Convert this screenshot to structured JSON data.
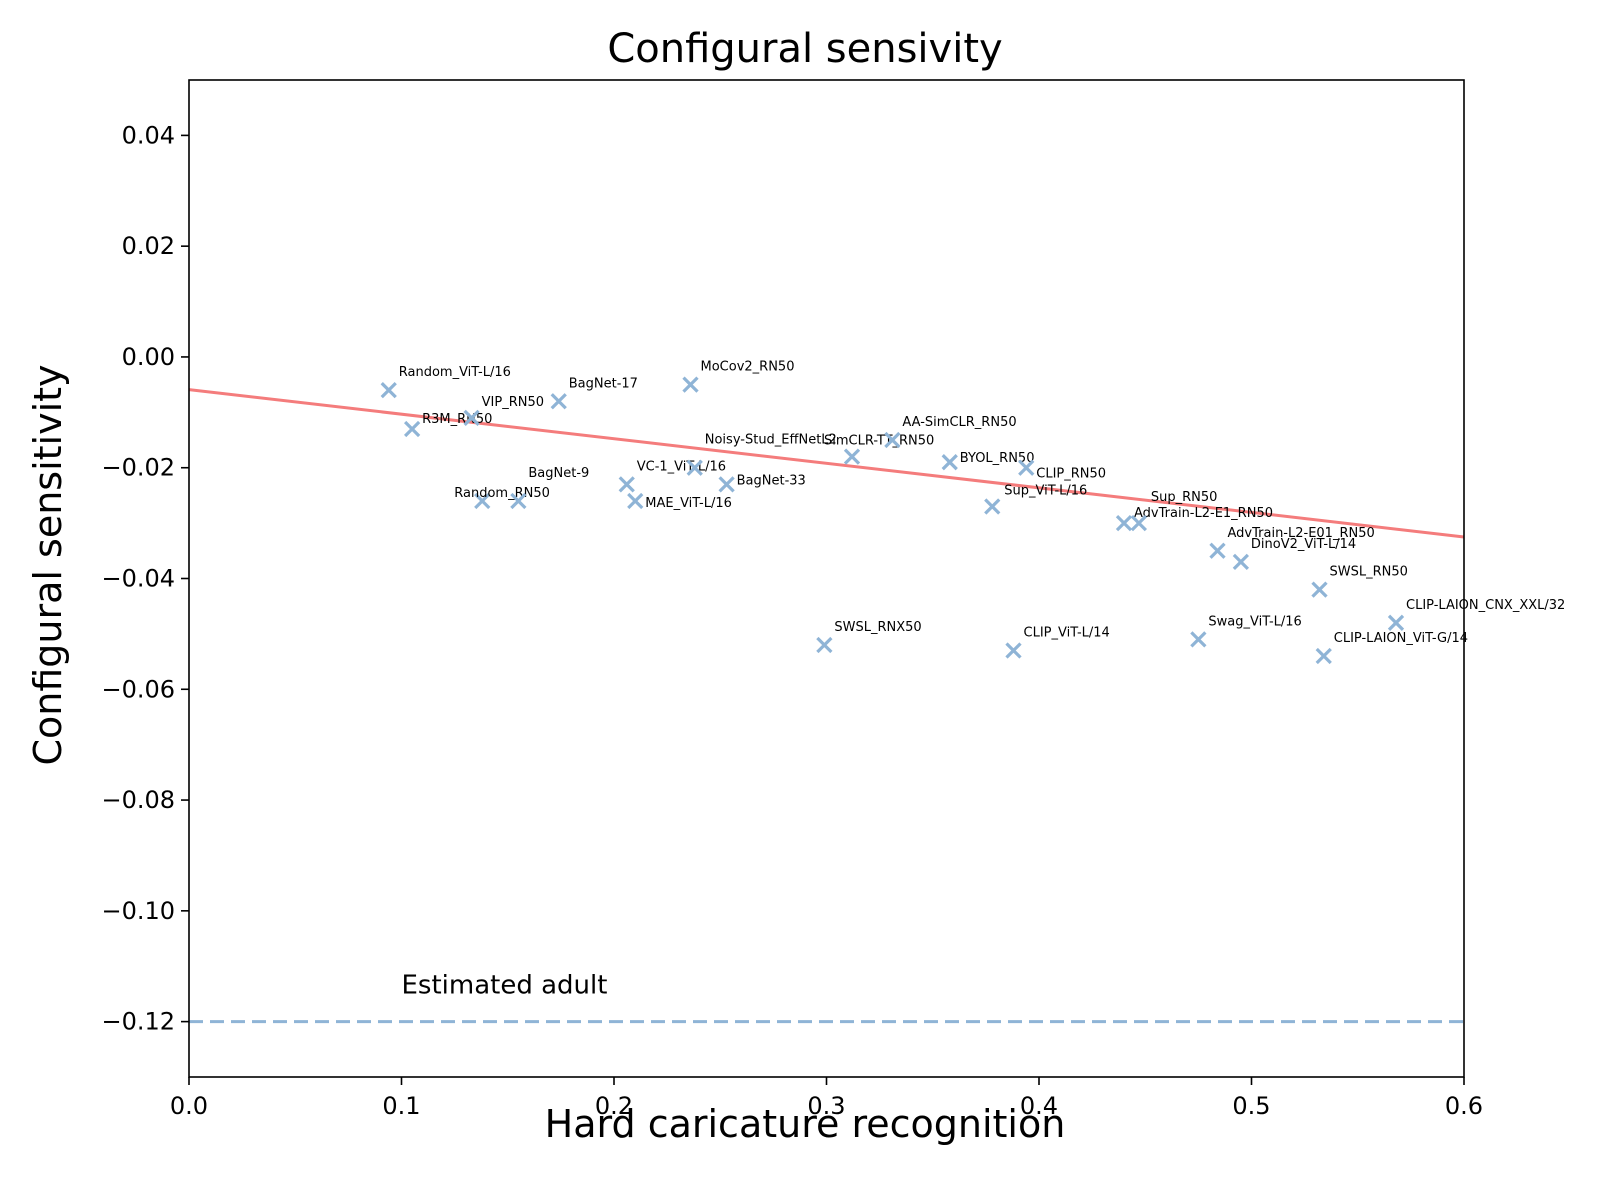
{
  "chart_data": {
    "type": "scatter",
    "title": "Configural sensivity",
    "xlabel": "Hard caricature recognition",
    "ylabel": "Configural sensitivity",
    "xlim": [
      0.0,
      0.6
    ],
    "ylim": [
      -0.13,
      0.05
    ],
    "xticks": [
      0.0,
      0.1,
      0.2,
      0.3,
      0.4,
      0.5,
      0.6
    ],
    "xtick_labels": [
      "0.0",
      "0.1",
      "0.2",
      "0.3",
      "0.4",
      "0.5",
      "0.6"
    ],
    "yticks": [
      0.04,
      0.02,
      0.0,
      -0.02,
      -0.04,
      -0.06,
      -0.08,
      -0.1,
      -0.12
    ],
    "ytick_labels": [
      "0.04",
      "0.02",
      "0.00",
      "−0.02",
      "−0.04",
      "−0.06",
      "−0.08",
      "−0.10",
      "−0.12"
    ],
    "grid": false,
    "colors": {
      "points": "#8fb4d6",
      "fit_line": "#f47c7c",
      "reference_line": "#8fb4d6"
    },
    "fit_line": {
      "x": [
        0.0,
        0.6
      ],
      "y": [
        -0.0059,
        -0.0325
      ]
    },
    "reference": {
      "y": -0.12,
      "label": "Estimated adult",
      "style": "dashed"
    },
    "points": [
      {
        "label": "Random_ViT-L/16",
        "x": 0.094,
        "y": -0.006
      },
      {
        "label": "R3M_RN50",
        "x": 0.105,
        "y": -0.013
      },
      {
        "label": "VIP_RN50",
        "x": 0.133,
        "y": -0.011
      },
      {
        "label": "Random_RN50",
        "x": 0.138,
        "y": -0.026
      },
      {
        "label": "BagNet-9",
        "x": 0.155,
        "y": -0.026
      },
      {
        "label": "BagNet-17",
        "x": 0.174,
        "y": -0.008
      },
      {
        "label": "VC-1_ViT-L/16",
        "x": 0.206,
        "y": -0.023
      },
      {
        "label": "MAE_ViT-L/16",
        "x": 0.21,
        "y": -0.026
      },
      {
        "label": "MoCov2_RN50",
        "x": 0.236,
        "y": -0.005
      },
      {
        "label": "Noisy-Stud_EffNetL2",
        "x": 0.238,
        "y": -0.02
      },
      {
        "label": "BagNet-33",
        "x": 0.253,
        "y": -0.023
      },
      {
        "label": "SWSL_RNX50",
        "x": 0.299,
        "y": -0.052
      },
      {
        "label": "SimCLR-TT_RN50",
        "x": 0.312,
        "y": -0.018
      },
      {
        "label": "AA-SimCLR_RN50",
        "x": 0.331,
        "y": -0.015
      },
      {
        "label": "BYOL_RN50",
        "x": 0.358,
        "y": -0.019
      },
      {
        "label": "Sup_ViT-L/16",
        "x": 0.378,
        "y": -0.027
      },
      {
        "label": "CLIP_ViT-L/14",
        "x": 0.388,
        "y": -0.053
      },
      {
        "label": "CLIP_RN50",
        "x": 0.394,
        "y": -0.02
      },
      {
        "label": "AdvTrain-L2-E1_RN50",
        "x": 0.44,
        "y": -0.03
      },
      {
        "label": "Sup_RN50",
        "x": 0.447,
        "y": -0.03
      },
      {
        "label": "Swag_ViT-L/16",
        "x": 0.475,
        "y": -0.051
      },
      {
        "label": "AdvTrain-L2-E01_RN50",
        "x": 0.484,
        "y": -0.035
      },
      {
        "label": "DinoV2_ViT-L/14",
        "x": 0.495,
        "y": -0.037
      },
      {
        "label": "SWSL_RN50",
        "x": 0.532,
        "y": -0.042
      },
      {
        "label": "CLIP-LAION_ViT-G/14",
        "x": 0.534,
        "y": -0.054
      },
      {
        "label": "CLIP-LAION_CNX_XXL/32",
        "x": 0.568,
        "y": -0.048
      }
    ]
  }
}
